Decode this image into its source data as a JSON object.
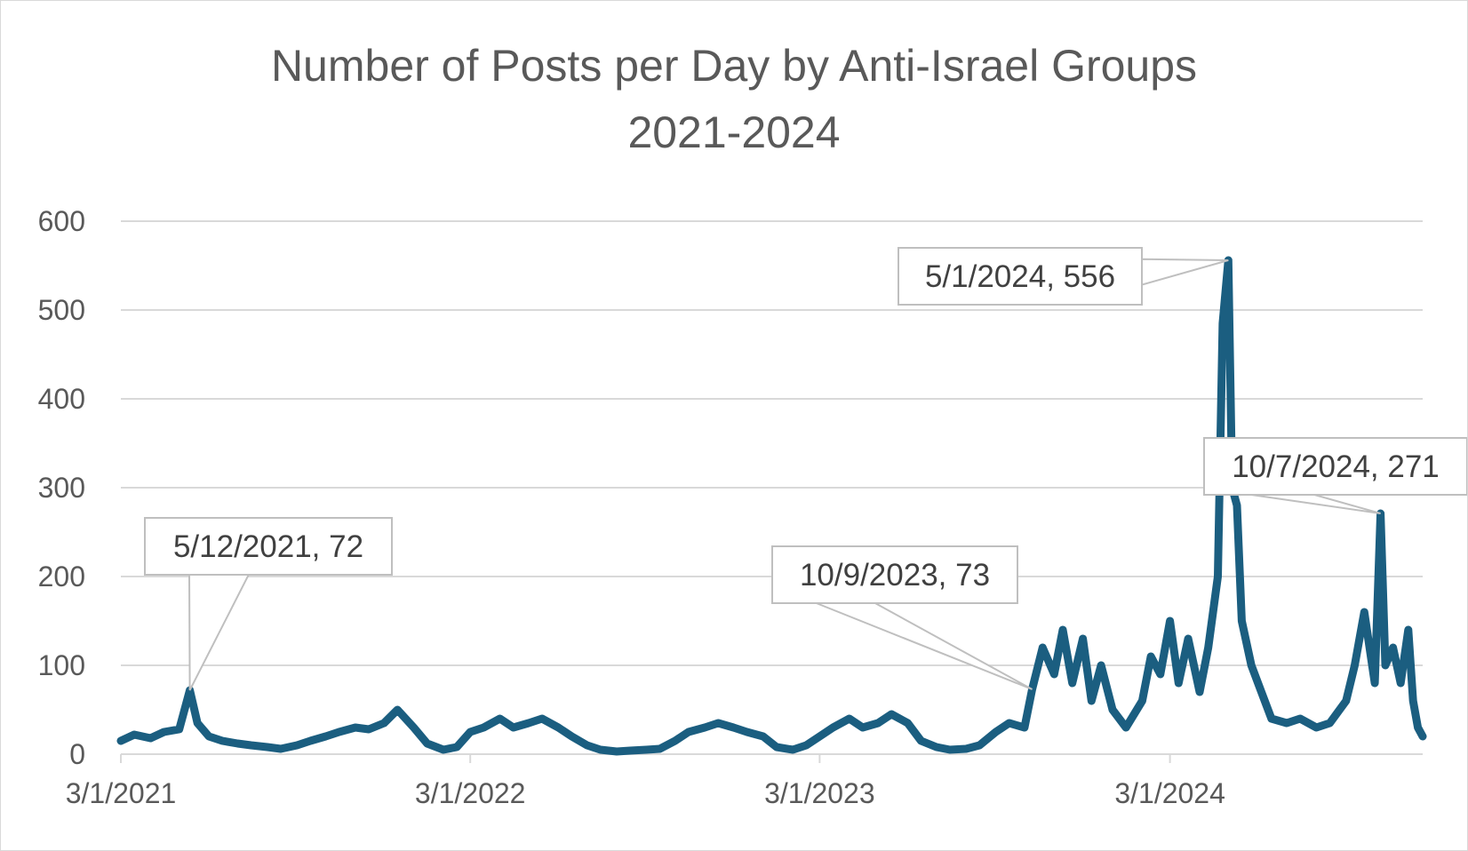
{
  "chart_data": {
    "type": "line",
    "title": "Number of Posts per Day by Anti-Israel Groups",
    "subtitle": "2021-2024",
    "xlabel": "",
    "ylabel": "",
    "ylim": [
      0,
      600
    ],
    "yticks": [
      "0",
      "100",
      "200",
      "300",
      "400",
      "500",
      "600"
    ],
    "x_range": [
      "2021-03-01",
      "2024-11-20"
    ],
    "xticks": [
      {
        "date": "2021-03-01",
        "label": "3/1/2021"
      },
      {
        "date": "2022-03-01",
        "label": "3/1/2022"
      },
      {
        "date": "2023-03-01",
        "label": "3/1/2023"
      },
      {
        "date": "2024-03-01",
        "label": "3/1/2024"
      }
    ],
    "grid": true,
    "legend": "none",
    "color": "#1b5e80",
    "annotations": [
      {
        "date": "2021-05-12",
        "value": 72,
        "label": "5/12/2021, 72"
      },
      {
        "date": "2023-10-09",
        "value": 73,
        "label": "10/9/2023, 73"
      },
      {
        "date": "2024-05-01",
        "value": 556,
        "label": "5/1/2024, 556"
      },
      {
        "date": "2024-10-07",
        "value": 271,
        "label": "10/7/2024, 271"
      }
    ],
    "series": [
      {
        "points": [
          [
            "2021-03-01",
            15
          ],
          [
            "2021-03-15",
            22
          ],
          [
            "2021-04-01",
            18
          ],
          [
            "2021-04-15",
            25
          ],
          [
            "2021-05-01",
            28
          ],
          [
            "2021-05-12",
            72
          ],
          [
            "2021-05-20",
            35
          ],
          [
            "2021-06-01",
            20
          ],
          [
            "2021-06-15",
            15
          ],
          [
            "2021-07-01",
            12
          ],
          [
            "2021-07-15",
            10
          ],
          [
            "2021-08-01",
            8
          ],
          [
            "2021-08-15",
            6
          ],
          [
            "2021-09-01",
            10
          ],
          [
            "2021-09-15",
            15
          ],
          [
            "2021-10-01",
            20
          ],
          [
            "2021-10-15",
            25
          ],
          [
            "2021-11-01",
            30
          ],
          [
            "2021-11-15",
            28
          ],
          [
            "2021-12-01",
            35
          ],
          [
            "2021-12-15",
            50
          ],
          [
            "2022-01-01",
            30
          ],
          [
            "2022-01-15",
            12
          ],
          [
            "2022-02-01",
            5
          ],
          [
            "2022-02-15",
            8
          ],
          [
            "2022-03-01",
            25
          ],
          [
            "2022-03-15",
            30
          ],
          [
            "2022-04-01",
            40
          ],
          [
            "2022-04-15",
            30
          ],
          [
            "2022-05-01",
            35
          ],
          [
            "2022-05-15",
            40
          ],
          [
            "2022-06-01",
            30
          ],
          [
            "2022-06-15",
            20
          ],
          [
            "2022-07-01",
            10
          ],
          [
            "2022-07-15",
            5
          ],
          [
            "2022-08-01",
            3
          ],
          [
            "2022-08-15",
            4
          ],
          [
            "2022-09-01",
            5
          ],
          [
            "2022-09-15",
            6
          ],
          [
            "2022-10-01",
            15
          ],
          [
            "2022-10-15",
            25
          ],
          [
            "2022-11-01",
            30
          ],
          [
            "2022-11-15",
            35
          ],
          [
            "2022-12-01",
            30
          ],
          [
            "2022-12-15",
            25
          ],
          [
            "2023-01-01",
            20
          ],
          [
            "2023-01-15",
            8
          ],
          [
            "2023-02-01",
            5
          ],
          [
            "2023-02-15",
            10
          ],
          [
            "2023-03-01",
            20
          ],
          [
            "2023-03-15",
            30
          ],
          [
            "2023-04-01",
            40
          ],
          [
            "2023-04-15",
            30
          ],
          [
            "2023-05-01",
            35
          ],
          [
            "2023-05-15",
            45
          ],
          [
            "2023-06-01",
            35
          ],
          [
            "2023-06-15",
            15
          ],
          [
            "2023-07-01",
            8
          ],
          [
            "2023-07-15",
            5
          ],
          [
            "2023-08-01",
            6
          ],
          [
            "2023-08-15",
            10
          ],
          [
            "2023-09-01",
            25
          ],
          [
            "2023-09-15",
            35
          ],
          [
            "2023-10-01",
            30
          ],
          [
            "2023-10-09",
            73
          ],
          [
            "2023-10-20",
            120
          ],
          [
            "2023-11-01",
            90
          ],
          [
            "2023-11-10",
            140
          ],
          [
            "2023-11-20",
            80
          ],
          [
            "2023-12-01",
            130
          ],
          [
            "2023-12-10",
            60
          ],
          [
            "2023-12-20",
            100
          ],
          [
            "2024-01-01",
            50
          ],
          [
            "2024-01-15",
            30
          ],
          [
            "2024-02-01",
            60
          ],
          [
            "2024-02-10",
            110
          ],
          [
            "2024-02-20",
            90
          ],
          [
            "2024-03-01",
            150
          ],
          [
            "2024-03-10",
            80
          ],
          [
            "2024-03-20",
            130
          ],
          [
            "2024-04-01",
            70
          ],
          [
            "2024-04-10",
            120
          ],
          [
            "2024-04-20",
            200
          ],
          [
            "2024-04-25",
            485
          ],
          [
            "2024-05-01",
            556
          ],
          [
            "2024-05-05",
            300
          ],
          [
            "2024-05-10",
            280
          ],
          [
            "2024-05-15",
            150
          ],
          [
            "2024-05-25",
            100
          ],
          [
            "2024-06-01",
            80
          ],
          [
            "2024-06-15",
            40
          ],
          [
            "2024-07-01",
            35
          ],
          [
            "2024-07-15",
            40
          ],
          [
            "2024-08-01",
            30
          ],
          [
            "2024-08-15",
            35
          ],
          [
            "2024-09-01",
            60
          ],
          [
            "2024-09-10",
            100
          ],
          [
            "2024-09-20",
            160
          ],
          [
            "2024-10-01",
            80
          ],
          [
            "2024-10-07",
            271
          ],
          [
            "2024-10-12",
            100
          ],
          [
            "2024-10-20",
            120
          ],
          [
            "2024-10-28",
            80
          ],
          [
            "2024-11-05",
            140
          ],
          [
            "2024-11-10",
            60
          ],
          [
            "2024-11-15",
            30
          ],
          [
            "2024-11-20",
            20
          ]
        ]
      }
    ]
  }
}
